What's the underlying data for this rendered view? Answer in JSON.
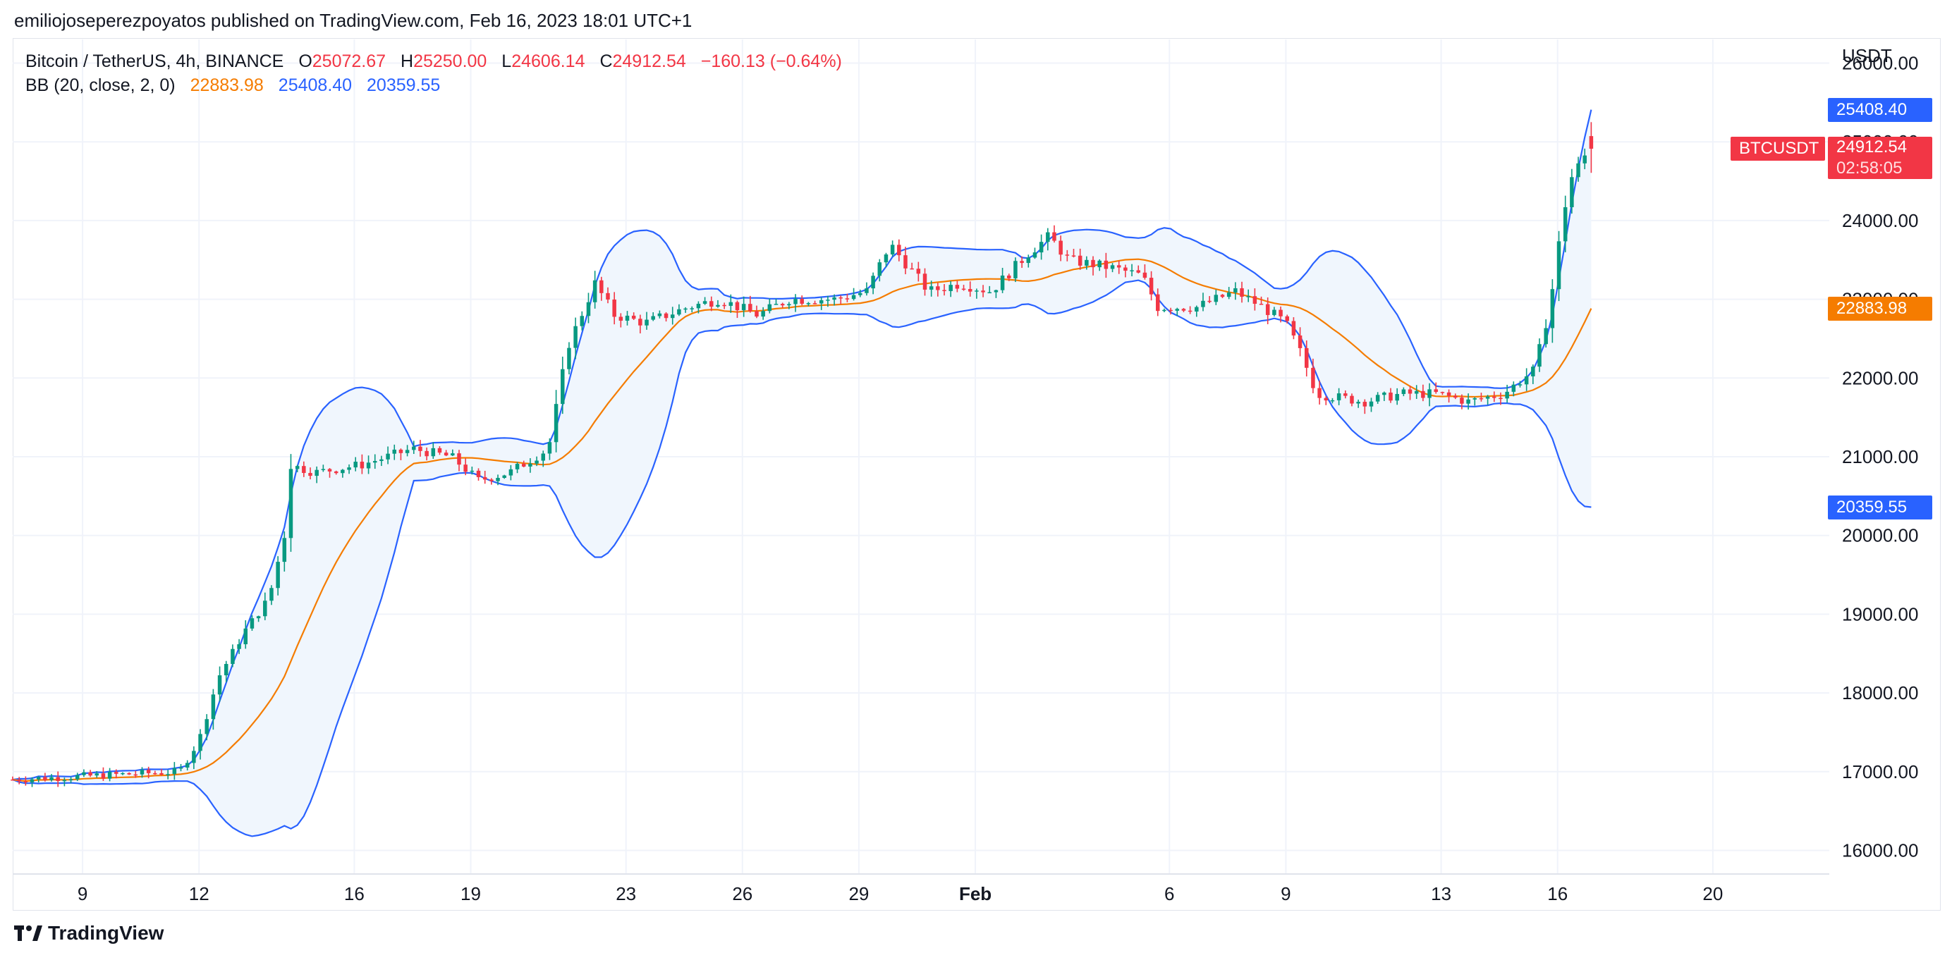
{
  "publisher_line": "emiliojoseperezpoyatos published on TradingView.com, Feb 16, 2023 18:01 UTC+1",
  "brand": "TradingView",
  "legend": {
    "symbol": "Bitcoin / TetherUS, 4h, BINANCE",
    "o_label": "O",
    "o_value": "25072.67",
    "h_label": "H",
    "h_value": "25250.00",
    "l_label": "L",
    "l_value": "24606.14",
    "c_label": "C",
    "c_value": "24912.54",
    "change": "−160.13 (−0.64%)",
    "bb_label": "BB (20, close, 2, 0)",
    "bb_mid": "22883.98",
    "bb_upper": "25408.40",
    "bb_lower": "20359.55"
  },
  "tags": {
    "upper": "25408.40",
    "symbol": "BTCUSDT",
    "price": "24912.54",
    "countdown": "02:58:05",
    "mid": "22883.98",
    "lower": "20359.55"
  },
  "colors": {
    "up": "#089981",
    "down": "#f23645",
    "bb_mid": "#f57c00",
    "bb_band": "#2962ff",
    "bb_fill": "#f0f6fd",
    "grid": "#f0f3fa",
    "axis_text": "#131722"
  },
  "chart_data": {
    "type": "candlestick",
    "y_axis_unit": "USDT",
    "ylim": [
      15700,
      26300
    ],
    "y_ticks": [
      16000,
      17000,
      18000,
      19000,
      20000,
      21000,
      22000,
      23000,
      24000,
      25000,
      26000
    ],
    "y_tick_labels": [
      "16000.00",
      "17000.00",
      "18000.00",
      "19000.00",
      "20000.00",
      "21000.00",
      "22000.00",
      "23000.00",
      "24000.00",
      "25000.00",
      "26000.00"
    ],
    "x_labels": [
      "9",
      "12",
      "16",
      "19",
      "23",
      "26",
      "29",
      "Feb",
      "6",
      "9",
      "13",
      "16",
      "20"
    ],
    "x_label_days": [
      2,
      5,
      9,
      12,
      16,
      19,
      22,
      25,
      30,
      33,
      37,
      40,
      44
    ],
    "x_range_days": [
      0.2,
      47.0
    ],
    "day_zero": "Jan 7, 2023",
    "bb_params": "20, close, 2, 0",
    "candle_interval": "4h",
    "keypoints_close": [
      [
        0.2,
        16900
      ],
      [
        4.5,
        17000
      ],
      [
        5.0,
        17400
      ],
      [
        5.5,
        18200
      ],
      [
        6.2,
        18800
      ],
      [
        6.8,
        19200
      ],
      [
        7.2,
        20000
      ],
      [
        7.3,
        20900
      ],
      [
        8.0,
        20800
      ],
      [
        9.2,
        20900
      ],
      [
        10.5,
        21100
      ],
      [
        11.5,
        21000
      ],
      [
        12.2,
        20700
      ],
      [
        13.0,
        20800
      ],
      [
        14.0,
        21100
      ],
      [
        14.5,
        22400
      ],
      [
        15.2,
        23200
      ],
      [
        15.7,
        22800
      ],
      [
        16.5,
        22700
      ],
      [
        17.6,
        22900
      ],
      [
        18.4,
        23000
      ],
      [
        19.4,
        22800
      ],
      [
        20.2,
        23000
      ],
      [
        21.4,
        23000
      ],
      [
        22.2,
        23100
      ],
      [
        22.8,
        23700
      ],
      [
        23.8,
        23100
      ],
      [
        24.6,
        23200
      ],
      [
        25.4,
        23100
      ],
      [
        26.4,
        23600
      ],
      [
        26.9,
        23800
      ],
      [
        27.4,
        23500
      ],
      [
        28.5,
        23400
      ],
      [
        29.3,
        23300
      ],
      [
        29.7,
        22900
      ],
      [
        30.7,
        22900
      ],
      [
        31.7,
        23100
      ],
      [
        32.4,
        22900
      ],
      [
        33.0,
        22700
      ],
      [
        33.4,
        22300
      ],
      [
        33.8,
        21800
      ],
      [
        35.0,
        21700
      ],
      [
        36.0,
        21800
      ],
      [
        36.9,
        21800
      ],
      [
        37.7,
        21700
      ],
      [
        38.6,
        21800
      ],
      [
        39.4,
        22100
      ],
      [
        39.8,
        22900
      ],
      [
        40.0,
        23600
      ],
      [
        40.3,
        24500
      ],
      [
        40.8,
        24900
      ]
    ],
    "last_candle": {
      "open": 25072.67,
      "high": 25250.0,
      "low": 24606.14,
      "close": 24912.54
    },
    "bollinger_last": {
      "middle": 22883.98,
      "upper": 25408.4,
      "lower": 20359.55
    }
  }
}
